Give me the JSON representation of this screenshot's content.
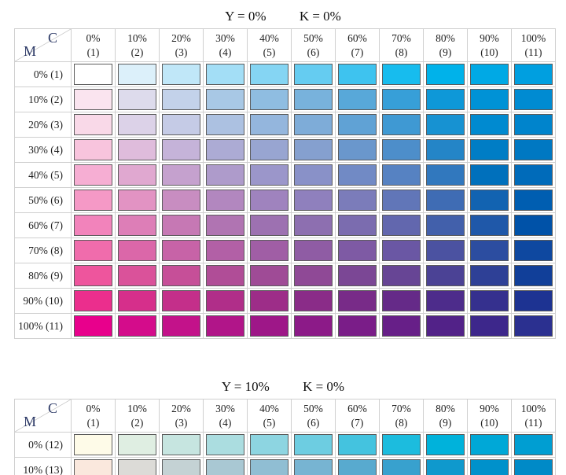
{
  "chart_data": [
    {
      "type": "heatmap",
      "title": "Y = 0%   K = 0%",
      "title_parts": {
        "y": "Y = 0%",
        "k": "K = 0%"
      },
      "fixed_values": {
        "Y": "0%",
        "K": "0%"
      },
      "x_axis": {
        "variable": "C",
        "percents": [
          0,
          10,
          20,
          30,
          40,
          50,
          60,
          70,
          80,
          90,
          100
        ],
        "tick_pct": [
          "0%",
          "10%",
          "20%",
          "30%",
          "40%",
          "50%",
          "60%",
          "70%",
          "80%",
          "90%",
          "100%"
        ],
        "tick_index": [
          "(1)",
          "(2)",
          "(3)",
          "(4)",
          "(5)",
          "(6)",
          "(7)",
          "(8)",
          "(9)",
          "(10)",
          "(11)"
        ]
      },
      "y_axis": {
        "variable": "M",
        "percents": [
          0,
          10,
          20,
          30,
          40,
          50,
          60,
          70,
          80,
          90,
          100
        ],
        "tick_labels": [
          "0% (1)",
          "10% (2)",
          "20% (3)",
          "30% (4)",
          "40% (5)",
          "50% (6)",
          "60% (7)",
          "70% (8)",
          "80% (9)",
          "90% (10)",
          "100% (11)"
        ]
      },
      "cell_colors": [
        [
          "#FFFFFF",
          "#DCF0FA",
          "#C0E7F8",
          "#A3DEF6",
          "#85D5F3",
          "#65CCF1",
          "#3EC3EF",
          "#17BCEE",
          "#00B2EA",
          "#00A9E5",
          "#009FE0"
        ],
        [
          "#FAE4EF",
          "#DDDBEC",
          "#C3D2EA",
          "#A8C8E5",
          "#8FBDE1",
          "#78B2DC",
          "#58A8D9",
          "#379FD8",
          "#0E98D8",
          "#0092D6",
          "#008BD2"
        ],
        [
          "#F9D9E8",
          "#DCD2E8",
          "#C5CBE6",
          "#ACC1E1",
          "#94B6DD",
          "#7EACD8",
          "#60A2D5",
          "#3F99D3",
          "#1792D2",
          "#008AD0",
          "#0084CC"
        ],
        [
          "#F8C4DD",
          "#DFBCDC",
          "#C5B3D9",
          "#ACABD4",
          "#98A5D1",
          "#85A0CF",
          "#6A97CC",
          "#4D8ECA",
          "#2485C7",
          "#007DC5",
          "#0078C2"
        ],
        [
          "#F6AED3",
          "#E0A8D0",
          "#C5A1CE",
          "#AE9BCB",
          "#9B96CA",
          "#8991C8",
          "#718AC5",
          "#5682C2",
          "#3178BE",
          "#0070BC",
          "#006BBA"
        ],
        [
          "#F599C6",
          "#E293C3",
          "#C88DC1",
          "#B287BF",
          "#9F83BE",
          "#8F80BD",
          "#7B7CBA",
          "#6176B8",
          "#3F6CB4",
          "#1263B1",
          "#005EB1"
        ],
        [
          "#F283BB",
          "#DD7EB7",
          "#C678B4",
          "#B074B2",
          "#9D71B1",
          "#8D6FB0",
          "#7B6CAF",
          "#6267AE",
          "#4260AB",
          "#1F58A9",
          "#0052A8"
        ],
        [
          "#F06CAC",
          "#DB67A9",
          "#C763A7",
          "#B260A6",
          "#A05EA5",
          "#8F5CA4",
          "#7E5AA4",
          "#6A57A4",
          "#4B52A1",
          "#2C4DA0",
          "#0E48A0"
        ],
        [
          "#EE559D",
          "#DA529A",
          "#C64F98",
          "#B04D97",
          "#9F4B96",
          "#8F4996",
          "#7B4795",
          "#674595",
          "#4B4295",
          "#2E4096",
          "#113F99"
        ],
        [
          "#EB2E8D",
          "#D62F8B",
          "#C42F8A",
          "#B02E89",
          "#9D2D88",
          "#8A2C88",
          "#782B88",
          "#652A88",
          "#4D2C8B",
          "#35308E",
          "#1D3392"
        ],
        [
          "#E8008C",
          "#D40C8B",
          "#C3128A",
          "#B11589",
          "#9E1788",
          "#8C1A88",
          "#7A1D88",
          "#671F88",
          "#522288",
          "#3D278B",
          "#2B3090"
        ]
      ]
    },
    {
      "type": "heatmap",
      "title": "Y = 10%   K = 0%",
      "title_parts": {
        "y": "Y = 10%",
        "k": "K = 0%"
      },
      "fixed_values": {
        "Y": "10%",
        "K": "0%"
      },
      "x_axis": {
        "variable": "C",
        "percents": [
          0,
          10,
          20,
          30,
          40,
          50,
          60,
          70,
          80,
          90,
          100
        ],
        "tick_pct": [
          "0%",
          "10%",
          "20%",
          "30%",
          "40%",
          "50%",
          "60%",
          "70%",
          "80%",
          "90%",
          "100%"
        ],
        "tick_index": [
          "(1)",
          "(2)",
          "(3)",
          "(4)",
          "(5)",
          "(6)",
          "(7)",
          "(8)",
          "(9)",
          "(10)",
          "(11)"
        ]
      },
      "y_axis": {
        "variable": "M",
        "percents": [
          0,
          10
        ],
        "tick_labels": [
          "0% (12)",
          "10% (13)"
        ]
      },
      "cell_colors": [
        [
          "#FEFBE8",
          "#DFEEE2",
          "#C6E5E0",
          "#ABDDE0",
          "#8DD5E1",
          "#6DCDE1",
          "#44C3DF",
          "#1CBCDE",
          "#00B2DB",
          "#00A8D7",
          "#009ED2"
        ],
        [
          "#FAE8DD",
          "#DCDBD7",
          "#C4D2D4",
          "#A9C8D3",
          "#90BED3",
          "#77B4D2",
          "#58AACF",
          "#38A1CE",
          "#0F99CD",
          "#0091CB",
          "#008AC7"
        ]
      ]
    }
  ]
}
